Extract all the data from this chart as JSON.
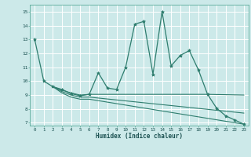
{
  "xlabel": "Humidex (Indice chaleur)",
  "xlim": [
    -0.5,
    23.5
  ],
  "ylim": [
    6.8,
    15.5
  ],
  "yticks": [
    7,
    8,
    9,
    10,
    11,
    12,
    13,
    14,
    15
  ],
  "xticks": [
    0,
    1,
    2,
    3,
    4,
    5,
    6,
    7,
    8,
    9,
    10,
    11,
    12,
    13,
    14,
    15,
    16,
    17,
    18,
    19,
    20,
    21,
    22,
    23
  ],
  "bg_color": "#cce9e9",
  "grid_color": "#ffffff",
  "line_color": "#2e7d6e",
  "main_line": [
    [
      0,
      13
    ],
    [
      1,
      10
    ],
    [
      2,
      9.6
    ],
    [
      3,
      9.4
    ],
    [
      4,
      9.1
    ],
    [
      5,
      8.95
    ],
    [
      6,
      9.05
    ],
    [
      7,
      10.6
    ],
    [
      8,
      9.5
    ],
    [
      9,
      9.4
    ],
    [
      10,
      11.0
    ],
    [
      11,
      14.1
    ],
    [
      12,
      14.3
    ],
    [
      13,
      10.5
    ],
    [
      14,
      15.0
    ],
    [
      15,
      11.1
    ],
    [
      16,
      11.85
    ],
    [
      17,
      12.2
    ],
    [
      18,
      10.8
    ],
    [
      19,
      9.05
    ],
    [
      20,
      8.05
    ],
    [
      21,
      7.5
    ],
    [
      22,
      7.2
    ],
    [
      23,
      6.9
    ]
  ],
  "line2": [
    [
      2,
      9.6
    ],
    [
      3,
      9.35
    ],
    [
      4,
      9.15
    ],
    [
      5,
      9.0
    ],
    [
      6,
      9.05
    ],
    [
      19,
      9.05
    ],
    [
      23,
      9.0
    ]
  ],
  "line3": [
    [
      2,
      9.6
    ],
    [
      3,
      9.25
    ],
    [
      4,
      9.0
    ],
    [
      5,
      8.85
    ],
    [
      6,
      8.85
    ],
    [
      23,
      7.7
    ]
  ],
  "line4": [
    [
      2,
      9.6
    ],
    [
      3,
      9.15
    ],
    [
      4,
      8.85
    ],
    [
      5,
      8.7
    ],
    [
      6,
      8.7
    ],
    [
      23,
      6.9
    ]
  ]
}
